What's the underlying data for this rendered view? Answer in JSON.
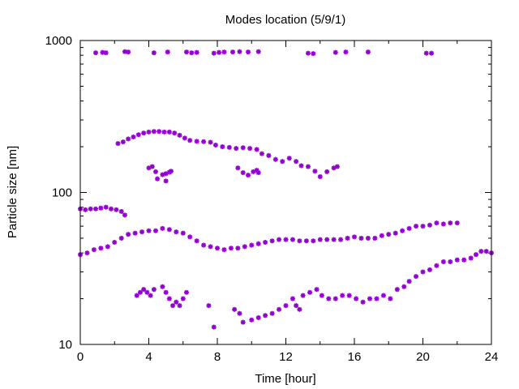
{
  "chart_data": {
    "type": "scatter",
    "title": "Modes location (5/9/1)",
    "xlabel": "Time [hour]",
    "ylabel": "Particle size [nm]",
    "xlim": [
      0,
      24
    ],
    "ylim": [
      10,
      1000
    ],
    "yscale": "log",
    "grid": false,
    "legend": "none",
    "marker_color": "#9400d3",
    "xticks": [
      0,
      4,
      8,
      12,
      16,
      20,
      24
    ],
    "xtick_labels": [
      "0",
      "4",
      "8",
      "12",
      "16",
      "20",
      "24"
    ],
    "yticks": [
      10,
      100,
      1000
    ],
    "ytick_labels": [
      "10",
      "100",
      "1000"
    ],
    "series": [
      {
        "points": [
          [
            0.9,
            830
          ],
          [
            1.3,
            835
          ],
          [
            1.5,
            830
          ],
          [
            2.6,
            845
          ],
          [
            2.8,
            840
          ],
          [
            4.3,
            830
          ],
          [
            5.1,
            840
          ],
          [
            6.2,
            840
          ],
          [
            6.5,
            830
          ],
          [
            6.8,
            835
          ],
          [
            7.8,
            825
          ],
          [
            8.1,
            835
          ],
          [
            8.4,
            840
          ],
          [
            8.9,
            840
          ],
          [
            9.3,
            845
          ],
          [
            9.8,
            840
          ],
          [
            10.4,
            845
          ],
          [
            13.3,
            825
          ],
          [
            13.6,
            820
          ],
          [
            14.9,
            835
          ],
          [
            15.5,
            840
          ],
          [
            16.8,
            840
          ],
          [
            20.2,
            825
          ],
          [
            20.5,
            825
          ]
        ]
      },
      {
        "points": [
          [
            2.2,
            210
          ],
          [
            2.5,
            215
          ],
          [
            2.8,
            225
          ],
          [
            3.1,
            232
          ],
          [
            3.4,
            240
          ],
          [
            3.7,
            246
          ],
          [
            4.0,
            250
          ],
          [
            4.3,
            252
          ],
          [
            4.6,
            252
          ],
          [
            4.9,
            250
          ],
          [
            5.2,
            250
          ],
          [
            5.5,
            246
          ],
          [
            5.8,
            238
          ],
          [
            6.1,
            228
          ],
          [
            6.4,
            220
          ],
          [
            6.8,
            217
          ],
          [
            7.2,
            216
          ],
          [
            7.6,
            214
          ],
          [
            7.9,
            205
          ],
          [
            8.3,
            200
          ],
          [
            8.7,
            198
          ],
          [
            9.1,
            195
          ],
          [
            9.5,
            197
          ],
          [
            9.9,
            195
          ],
          [
            10.3,
            192
          ],
          [
            10.6,
            180
          ],
          [
            11.0,
            175
          ],
          [
            11.4,
            165
          ],
          [
            11.8,
            160
          ],
          [
            12.2,
            168
          ],
          [
            12.6,
            160
          ],
          [
            12.9,
            150
          ],
          [
            13.3,
            148
          ],
          [
            13.7,
            138
          ],
          [
            14.0,
            127
          ],
          [
            14.4,
            137
          ],
          [
            14.8,
            145
          ],
          [
            15.0,
            148
          ]
        ]
      },
      {
        "points": [
          [
            4.0,
            145
          ],
          [
            4.2,
            148
          ],
          [
            4.4,
            137
          ],
          [
            4.5,
            123
          ],
          [
            4.8,
            131
          ],
          [
            5.0,
            133
          ],
          [
            5.2,
            136
          ],
          [
            5.3,
            138
          ],
          [
            5.0,
            119
          ],
          [
            9.2,
            145
          ],
          [
            9.5,
            135
          ],
          [
            9.8,
            130
          ],
          [
            10.1,
            137
          ],
          [
            10.3,
            140
          ],
          [
            10.4,
            135
          ]
        ]
      },
      {
        "points": [
          [
            0.0,
            78
          ],
          [
            0.3,
            77
          ],
          [
            0.6,
            78
          ],
          [
            0.9,
            78
          ],
          [
            1.2,
            79
          ],
          [
            1.5,
            80
          ],
          [
            1.8,
            78
          ],
          [
            2.1,
            77
          ],
          [
            2.4,
            75
          ],
          [
            2.6,
            71
          ],
          [
            0.0,
            39
          ],
          [
            0.4,
            40
          ],
          [
            0.8,
            42
          ],
          [
            1.2,
            43
          ],
          [
            1.6,
            44
          ],
          [
            2.0,
            47
          ],
          [
            2.4,
            50
          ],
          [
            2.8,
            53
          ],
          [
            3.2,
            54
          ],
          [
            3.6,
            55
          ],
          [
            4.0,
            56
          ],
          [
            4.4,
            56
          ],
          [
            4.8,
            58
          ],
          [
            5.2,
            57
          ],
          [
            5.6,
            55
          ],
          [
            6.0,
            54
          ],
          [
            6.4,
            51
          ],
          [
            6.8,
            48
          ],
          [
            7.2,
            45
          ],
          [
            7.6,
            44
          ],
          [
            8.0,
            43
          ],
          [
            8.4,
            42
          ],
          [
            8.8,
            43
          ],
          [
            9.2,
            43
          ],
          [
            9.6,
            44
          ],
          [
            10.0,
            45
          ],
          [
            10.4,
            46
          ],
          [
            10.8,
            47
          ],
          [
            11.2,
            48
          ],
          [
            11.6,
            49
          ],
          [
            12.0,
            49
          ],
          [
            12.4,
            49
          ],
          [
            12.8,
            48
          ],
          [
            13.2,
            48
          ],
          [
            13.6,
            48
          ],
          [
            14.0,
            49
          ],
          [
            14.4,
            49
          ],
          [
            14.8,
            49
          ],
          [
            15.2,
            49
          ],
          [
            15.6,
            50
          ],
          [
            16.0,
            51
          ],
          [
            16.4,
            50
          ],
          [
            16.8,
            50
          ],
          [
            17.2,
            50
          ],
          [
            17.6,
            52
          ],
          [
            18.0,
            53
          ],
          [
            18.4,
            54
          ],
          [
            18.8,
            56
          ],
          [
            19.2,
            58
          ],
          [
            19.6,
            60
          ],
          [
            20.0,
            60
          ],
          [
            20.4,
            61
          ],
          [
            20.8,
            63
          ],
          [
            21.2,
            62
          ],
          [
            21.6,
            63
          ],
          [
            22.0,
            63
          ]
        ]
      },
      {
        "points": [
          [
            3.3,
            21
          ],
          [
            3.5,
            22
          ],
          [
            3.7,
            23
          ],
          [
            3.9,
            22
          ],
          [
            4.1,
            21
          ],
          [
            4.3,
            23
          ],
          [
            4.8,
            24
          ],
          [
            5.0,
            22
          ],
          [
            5.2,
            20
          ],
          [
            5.4,
            18
          ],
          [
            5.6,
            19
          ],
          [
            5.8,
            18
          ],
          [
            6.0,
            20
          ],
          [
            6.2,
            22
          ],
          [
            7.5,
            18
          ],
          [
            7.8,
            13
          ],
          [
            9.0,
            17
          ],
          [
            9.3,
            16
          ],
          [
            9.5,
            14
          ],
          [
            10.0,
            14.5
          ],
          [
            10.4,
            15
          ],
          [
            10.8,
            15.5
          ],
          [
            11.2,
            16
          ],
          [
            11.6,
            17
          ],
          [
            12.0,
            18
          ],
          [
            12.4,
            20
          ],
          [
            12.6,
            18
          ],
          [
            12.8,
            17
          ],
          [
            13.0,
            21
          ],
          [
            13.4,
            22
          ],
          [
            13.8,
            23
          ],
          [
            14.1,
            21
          ],
          [
            14.5,
            20
          ],
          [
            14.9,
            20
          ],
          [
            15.3,
            21
          ],
          [
            15.7,
            21
          ],
          [
            16.1,
            20
          ],
          [
            16.5,
            19
          ],
          [
            16.9,
            20
          ],
          [
            17.3,
            20
          ],
          [
            17.7,
            21
          ],
          [
            18.1,
            20
          ],
          [
            18.5,
            23
          ],
          [
            18.9,
            24
          ],
          [
            19.2,
            26
          ],
          [
            19.6,
            28
          ],
          [
            20.0,
            30
          ],
          [
            20.4,
            31
          ],
          [
            20.8,
            33
          ],
          [
            21.2,
            35
          ],
          [
            21.6,
            35
          ],
          [
            22.0,
            36
          ],
          [
            22.4,
            36
          ],
          [
            22.8,
            37
          ],
          [
            23.1,
            39
          ],
          [
            23.4,
            41
          ],
          [
            23.7,
            41
          ],
          [
            24.0,
            40
          ]
        ]
      }
    ]
  }
}
